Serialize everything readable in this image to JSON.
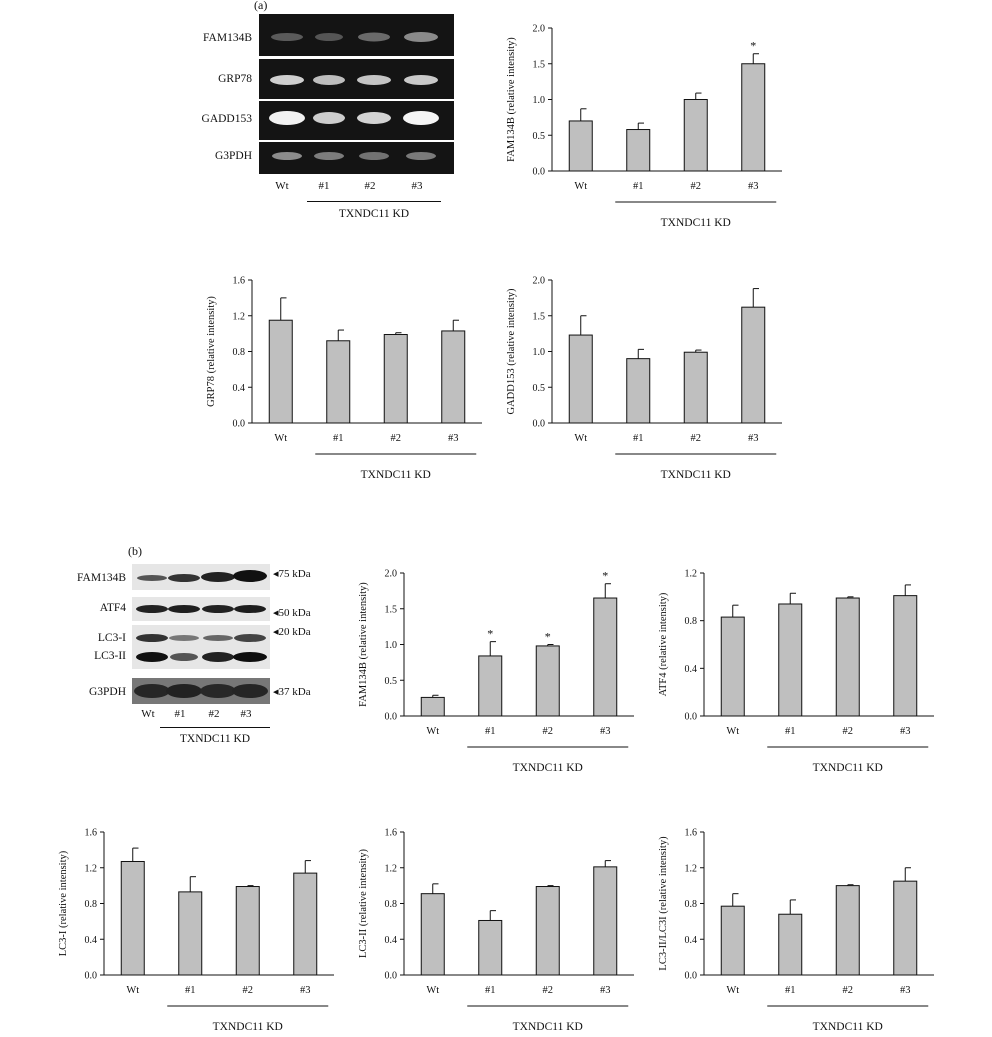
{
  "panel_a": {
    "label": "(a)",
    "blot": {
      "bands": [
        "FAM134B",
        "GRP78",
        "GADD153",
        "G3PDH"
      ],
      "lanes": [
        "Wt",
        "#1",
        "#2",
        "#3"
      ],
      "group_label": "TXNDC11 KD"
    }
  },
  "panel_b": {
    "label": "(b)",
    "blot": {
      "bands": [
        "FAM134B",
        "ATF4",
        "LC3-I",
        "LC3-II",
        "G3PDH"
      ],
      "markers": [
        "◂75 kDa",
        "◂50 kDa",
        "◂20 kDa",
        "◂37 kDa"
      ],
      "lanes": [
        "Wt",
        "#1",
        "#2",
        "#3"
      ],
      "group_label": "TXNDC11 KD"
    }
  },
  "chart_data": [
    {
      "type": "bar",
      "panel": "a",
      "categories": [
        "Wt",
        "#1",
        "#2",
        "#3"
      ],
      "values": [
        0.7,
        0.58,
        1.0,
        1.5
      ],
      "errors": [
        0.17,
        0.09,
        0.09,
        0.14
      ],
      "significant": [
        false,
        false,
        false,
        true
      ],
      "ylabel": "FAM134B (relative intensity)",
      "ylim": [
        0,
        2.0
      ],
      "yticks": [
        "0.0",
        "0.5",
        "1.0",
        "1.5",
        "2.0"
      ],
      "group_label": "TXNDC11 KD",
      "sig_mark": "*"
    },
    {
      "type": "bar",
      "panel": "a",
      "categories": [
        "Wt",
        "#1",
        "#2",
        "#3"
      ],
      "values": [
        1.15,
        0.92,
        0.99,
        1.03
      ],
      "errors": [
        0.25,
        0.12,
        0.02,
        0.12
      ],
      "significant": [
        false,
        false,
        false,
        false
      ],
      "ylabel": "GRP78 (relative intensity)",
      "ylim": [
        0,
        1.6
      ],
      "yticks": [
        "0.0",
        "0.4",
        "0.8",
        "1.2",
        "1.6"
      ],
      "group_label": "TXNDC11 KD",
      "sig_mark": "*"
    },
    {
      "type": "bar",
      "panel": "a",
      "categories": [
        "Wt",
        "#1",
        "#2",
        "#3"
      ],
      "values": [
        1.23,
        0.9,
        0.99,
        1.62
      ],
      "errors": [
        0.27,
        0.13,
        0.03,
        0.26
      ],
      "significant": [
        false,
        false,
        false,
        false
      ],
      "ylabel": "GADD153 (relative intensity)",
      "ylim": [
        0,
        2.0
      ],
      "yticks": [
        "0.0",
        "0.5",
        "1.0",
        "1.5",
        "2.0"
      ],
      "group_label": "TXNDC11 KD",
      "sig_mark": "*"
    },
    {
      "type": "bar",
      "panel": "b",
      "categories": [
        "Wt",
        "#1",
        "#2",
        "#3"
      ],
      "values": [
        0.26,
        0.84,
        0.98,
        1.65
      ],
      "errors": [
        0.03,
        0.2,
        0.02,
        0.2
      ],
      "significant": [
        false,
        true,
        true,
        true
      ],
      "ylabel": "FAM134B (relative intensity)",
      "ylim": [
        0,
        2.0
      ],
      "yticks": [
        "0.0",
        "0.5",
        "1.0",
        "1.5",
        "2.0"
      ],
      "group_label": "TXNDC11 KD",
      "sig_mark": "*"
    },
    {
      "type": "bar",
      "panel": "b",
      "categories": [
        "Wt",
        "#1",
        "#2",
        "#3"
      ],
      "values": [
        0.83,
        0.94,
        0.99,
        1.01
      ],
      "errors": [
        0.1,
        0.09,
        0.01,
        0.09
      ],
      "significant": [
        false,
        false,
        false,
        false
      ],
      "ylabel": "ATF4 (relative intensity)",
      "ylim": [
        0,
        1.2
      ],
      "yticks": [
        "0.0",
        "0.4",
        "0.8",
        "1.2"
      ],
      "group_label": "TXNDC11 KD",
      "sig_mark": "*"
    },
    {
      "type": "bar",
      "panel": "b",
      "categories": [
        "Wt",
        "#1",
        "#2",
        "#3"
      ],
      "values": [
        1.27,
        0.93,
        0.99,
        1.14
      ],
      "errors": [
        0.15,
        0.17,
        0.01,
        0.14
      ],
      "significant": [
        false,
        false,
        false,
        false
      ],
      "ylabel": "LC3-I (relative intensity)",
      "ylim": [
        0,
        1.6
      ],
      "yticks": [
        "0.0",
        "0.4",
        "0.8",
        "1.2",
        "1.6"
      ],
      "group_label": "TXNDC11 KD",
      "sig_mark": "*"
    },
    {
      "type": "bar",
      "panel": "b",
      "categories": [
        "Wt",
        "#1",
        "#2",
        "#3"
      ],
      "values": [
        0.91,
        0.61,
        0.99,
        1.21
      ],
      "errors": [
        0.11,
        0.11,
        0.01,
        0.07
      ],
      "significant": [
        false,
        false,
        false,
        false
      ],
      "ylabel": "LC3-II (relative intensity)",
      "ylim": [
        0,
        1.6
      ],
      "yticks": [
        "0.0",
        "0.4",
        "0.8",
        "1.2",
        "1.6"
      ],
      "group_label": "TXNDC11 KD",
      "sig_mark": "*"
    },
    {
      "type": "bar",
      "panel": "b",
      "categories": [
        "Wt",
        "#1",
        "#2",
        "#3"
      ],
      "values": [
        0.77,
        0.68,
        1.0,
        1.05
      ],
      "errors": [
        0.14,
        0.16,
        0.01,
        0.15
      ],
      "significant": [
        false,
        false,
        false,
        false
      ],
      "ylabel": "LC3-II/LC3I (relative intensity)",
      "ylim": [
        0,
        1.6
      ],
      "yticks": [
        "0.0",
        "0.4",
        "0.8",
        "1.2",
        "1.6"
      ],
      "group_label": "TXNDC11 KD",
      "sig_mark": "*"
    }
  ]
}
